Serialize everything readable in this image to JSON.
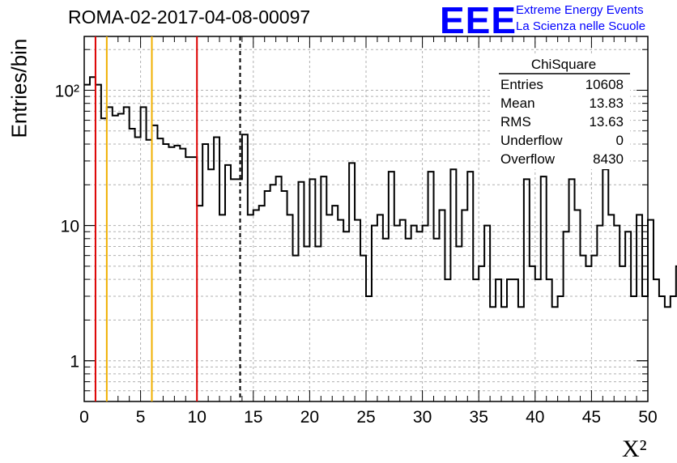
{
  "header": {
    "run_title": "ROMA-02-2017-04-08-00097",
    "logo_text": "EEE",
    "logo_line1": "Extreme Energy Events",
    "logo_line2": "La Scienza nelle Scuole"
  },
  "stats_box": {
    "title": "ChiSquare",
    "rows": [
      {
        "label": "Entries",
        "value": "10608"
      },
      {
        "label": "Mean",
        "value": "13.83"
      },
      {
        "label": "RMS",
        "value": "13.63"
      },
      {
        "label": "Underflow",
        "value": "0"
      },
      {
        "label": "Overflow",
        "value": "8430"
      }
    ]
  },
  "chart_data": {
    "type": "histogram",
    "title": "ROMA-02-2017-04-08-00097",
    "xlabel": "X²",
    "ylabel": "Entries/bin",
    "xlim": [
      0,
      50
    ],
    "ylim": [
      0.5,
      250
    ],
    "yscale": "log",
    "grid": true,
    "bin_width": 0.5,
    "x_ticks": [
      "0",
      "5",
      "10",
      "15",
      "20",
      "25",
      "30",
      "35",
      "40",
      "45",
      "50"
    ],
    "y_ticks": [
      "1",
      "10",
      "10²"
    ],
    "values": [
      110,
      125,
      110,
      62,
      75,
      65,
      67,
      75,
      52,
      45,
      75,
      43,
      55,
      44,
      40,
      38,
      39,
      37,
      32,
      32,
      14,
      40,
      26,
      45,
      12,
      28,
      22,
      22,
      47,
      12,
      13,
      14,
      18,
      20,
      23,
      18,
      12,
      6,
      21,
      7,
      22,
      7,
      23,
      12,
      14,
      11,
      9,
      29,
      11,
      6,
      3,
      10,
      12,
      8,
      25,
      10,
      11,
      8,
      10,
      9,
      10,
      25,
      8,
      13,
      4,
      26,
      7,
      13,
      25,
      4,
      5,
      10,
      2.5,
      4,
      2.5,
      4,
      4,
      2.5,
      22,
      5,
      4,
      23,
      4,
      2.5,
      3,
      9,
      22,
      13,
      6,
      5,
      6,
      10,
      26,
      12,
      10,
      5,
      9,
      3,
      12,
      3,
      11,
      4,
      3,
      2.5,
      3,
      5,
      6,
      3,
      22,
      13,
      2.5,
      12,
      12,
      10,
      6,
      2.5,
      2.5,
      3,
      1,
      1,
      5,
      11,
      22,
      7,
      10,
      5,
      3,
      3,
      9,
      8,
      5,
      3,
      3,
      4,
      11,
      3,
      13
    ],
    "markers": [
      {
        "x": 1,
        "color": "#dd0000",
        "style": "solid"
      },
      {
        "x": 2,
        "color": "#f0b000",
        "style": "solid"
      },
      {
        "x": 6,
        "color": "#f0b000",
        "style": "solid"
      },
      {
        "x": 10,
        "color": "#dd0000",
        "style": "solid"
      },
      {
        "x": 13.83,
        "color": "#000000",
        "style": "dashed"
      }
    ]
  }
}
